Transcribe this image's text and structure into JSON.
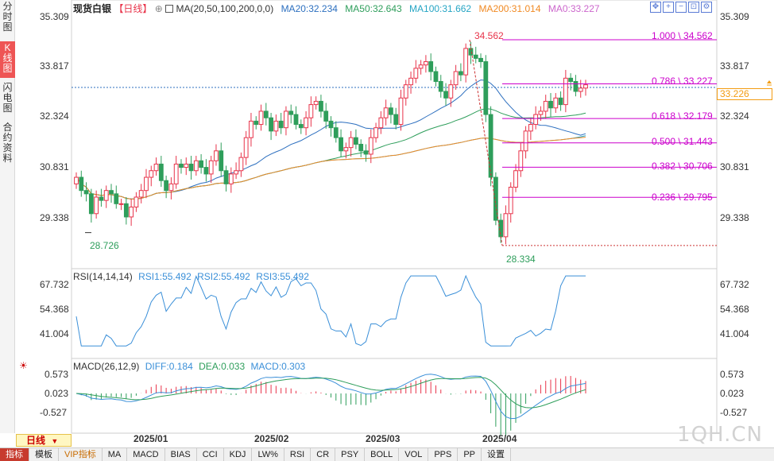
{
  "left_tabs": [
    {
      "label": "分时图",
      "active": false
    },
    {
      "label": "K线图",
      "active": true
    },
    {
      "label": "闪电图",
      "active": false
    },
    {
      "label": "合约资料",
      "active": false
    }
  ],
  "header": {
    "title": "现货白银",
    "period": "【日线】",
    "ma_params": "MA(20,50,100,200,0,0)",
    "ma20": "MA20:32.234",
    "ma50": "MA50:32.643",
    "ma100": "MA100:31.662",
    "ma200": "MA200:31.014",
    "ma0": "MA0:33.227"
  },
  "toolbar": [
    "zoom-in",
    "zoom-out",
    "fullscreen",
    "settings"
  ],
  "price_axis": [
    "35.309",
    "33.817",
    "32.324",
    "30.831",
    "29.338"
  ],
  "current_price": "33.226",
  "extreme_labels": {
    "high": "34.562",
    "low": "28.334",
    "early_low": "28.726"
  },
  "fib_levels": [
    {
      "label": "1.000 \\ 34.562",
      "price": 34.562
    },
    {
      "label": "0.786 \\ 33.227",
      "price": 33.227
    },
    {
      "label": "0.618 \\ 32.179",
      "price": 32.179
    },
    {
      "label": "0.500 \\ 31.443",
      "price": 31.443
    },
    {
      "label": "0.382 \\ 30.706",
      "price": 30.706
    },
    {
      "label": "0.236 \\ 29.795",
      "price": 29.795
    }
  ],
  "rsi": {
    "title": "RSI(14,14,14)",
    "rsi1": "RSI1:55.492",
    "rsi2": "RSI2:55.492",
    "rsi3": "RSI3:55.492",
    "axis": [
      "67.732",
      "54.368",
      "41.004"
    ]
  },
  "macd": {
    "title": "MACD(26,12,9)",
    "diff": "DIFF:0.184",
    "dea": "DEA:0.033",
    "macd": "MACD:0.303",
    "axis": [
      "0.573",
      "0.023",
      "-0.527"
    ]
  },
  "dates": [
    "2025/01",
    "2025/02",
    "2025/03",
    "2025/04"
  ],
  "period_selector": "日线",
  "bottom_tabs": [
    "指标",
    "模板",
    "VIP指标",
    "MA",
    "MACD",
    "BIAS",
    "CCI",
    "KDJ",
    "LW%",
    "RSI",
    "CR",
    "PSY",
    "BOLL",
    "VOL",
    "PPS",
    "PP",
    "设置"
  ],
  "watermark": "1QH.CN",
  "colors": {
    "up": "#e8334a",
    "down": "#2e9e5b",
    "ma20": "#2c6fbf",
    "ma50": "#2e9e5b",
    "ma100": "#26a5c4",
    "ma200": "#f08a24",
    "fib": "#cc00cc",
    "rsi": "#3a8fd8"
  }
}
